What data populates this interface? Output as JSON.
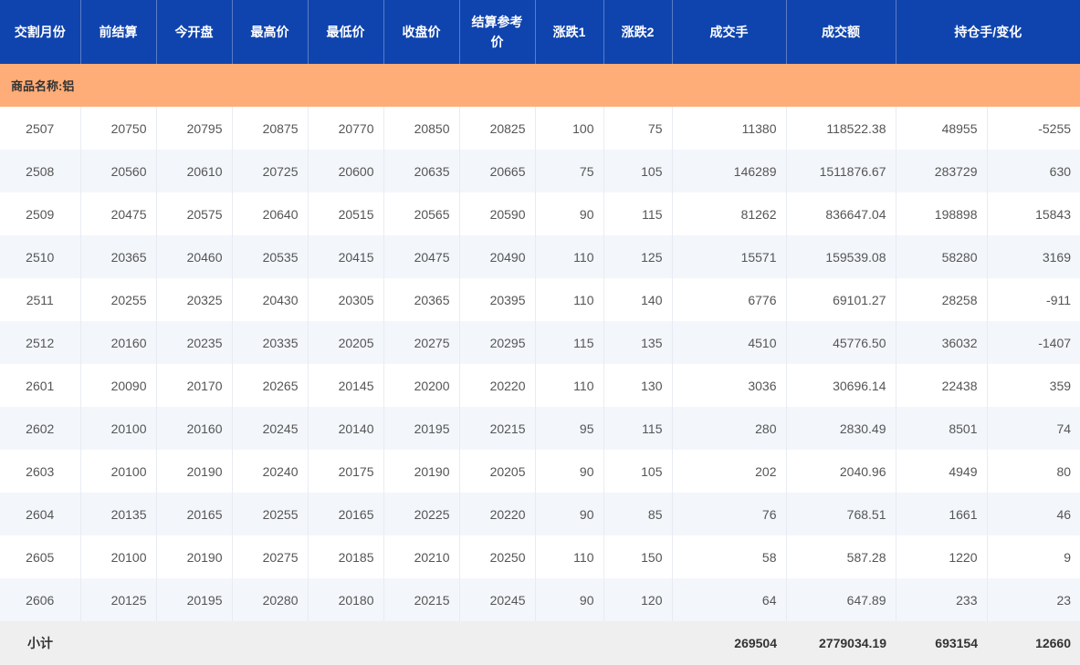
{
  "headers": [
    "交割月份",
    "前结算",
    "今开盘",
    "最高价",
    "最低价",
    "收盘价",
    "结算参考价",
    "涨跌1",
    "涨跌2",
    "成交手",
    "成交额",
    "持仓手/变化"
  ],
  "category": "商品名称:铝",
  "rows": [
    [
      "2507",
      "20750",
      "20795",
      "20875",
      "20770",
      "20850",
      "20825",
      "100",
      "75",
      "11380",
      "118522.38",
      "48955",
      "-5255"
    ],
    [
      "2508",
      "20560",
      "20610",
      "20725",
      "20600",
      "20635",
      "20665",
      "75",
      "105",
      "146289",
      "1511876.67",
      "283729",
      "630"
    ],
    [
      "2509",
      "20475",
      "20575",
      "20640",
      "20515",
      "20565",
      "20590",
      "90",
      "115",
      "81262",
      "836647.04",
      "198898",
      "15843"
    ],
    [
      "2510",
      "20365",
      "20460",
      "20535",
      "20415",
      "20475",
      "20490",
      "110",
      "125",
      "15571",
      "159539.08",
      "58280",
      "3169"
    ],
    [
      "2511",
      "20255",
      "20325",
      "20430",
      "20305",
      "20365",
      "20395",
      "110",
      "140",
      "6776",
      "69101.27",
      "28258",
      "-911"
    ],
    [
      "2512",
      "20160",
      "20235",
      "20335",
      "20205",
      "20275",
      "20295",
      "115",
      "135",
      "4510",
      "45776.50",
      "36032",
      "-1407"
    ],
    [
      "2601",
      "20090",
      "20170",
      "20265",
      "20145",
      "20200",
      "20220",
      "110",
      "130",
      "3036",
      "30696.14",
      "22438",
      "359"
    ],
    [
      "2602",
      "20100",
      "20160",
      "20245",
      "20140",
      "20195",
      "20215",
      "95",
      "115",
      "280",
      "2830.49",
      "8501",
      "74"
    ],
    [
      "2603",
      "20100",
      "20190",
      "20240",
      "20175",
      "20190",
      "20205",
      "90",
      "105",
      "202",
      "2040.96",
      "4949",
      "80"
    ],
    [
      "2604",
      "20135",
      "20165",
      "20255",
      "20165",
      "20225",
      "20220",
      "90",
      "85",
      "76",
      "768.51",
      "1661",
      "46"
    ],
    [
      "2605",
      "20100",
      "20190",
      "20275",
      "20185",
      "20210",
      "20250",
      "110",
      "150",
      "58",
      "587.28",
      "1220",
      "9"
    ],
    [
      "2606",
      "20125",
      "20195",
      "20280",
      "20180",
      "20215",
      "20245",
      "90",
      "120",
      "64",
      "647.89",
      "233",
      "23"
    ]
  ],
  "subtotal": {
    "label": "小计",
    "volume": "269504",
    "turnover": "2779034.19",
    "open_interest": "693154",
    "change": "12660"
  },
  "colors": {
    "header_bg": "#0f44ae",
    "category_bg": "#ffad78",
    "stripe_bg": "#f3f6fb",
    "subtotal_bg": "#efefef"
  }
}
